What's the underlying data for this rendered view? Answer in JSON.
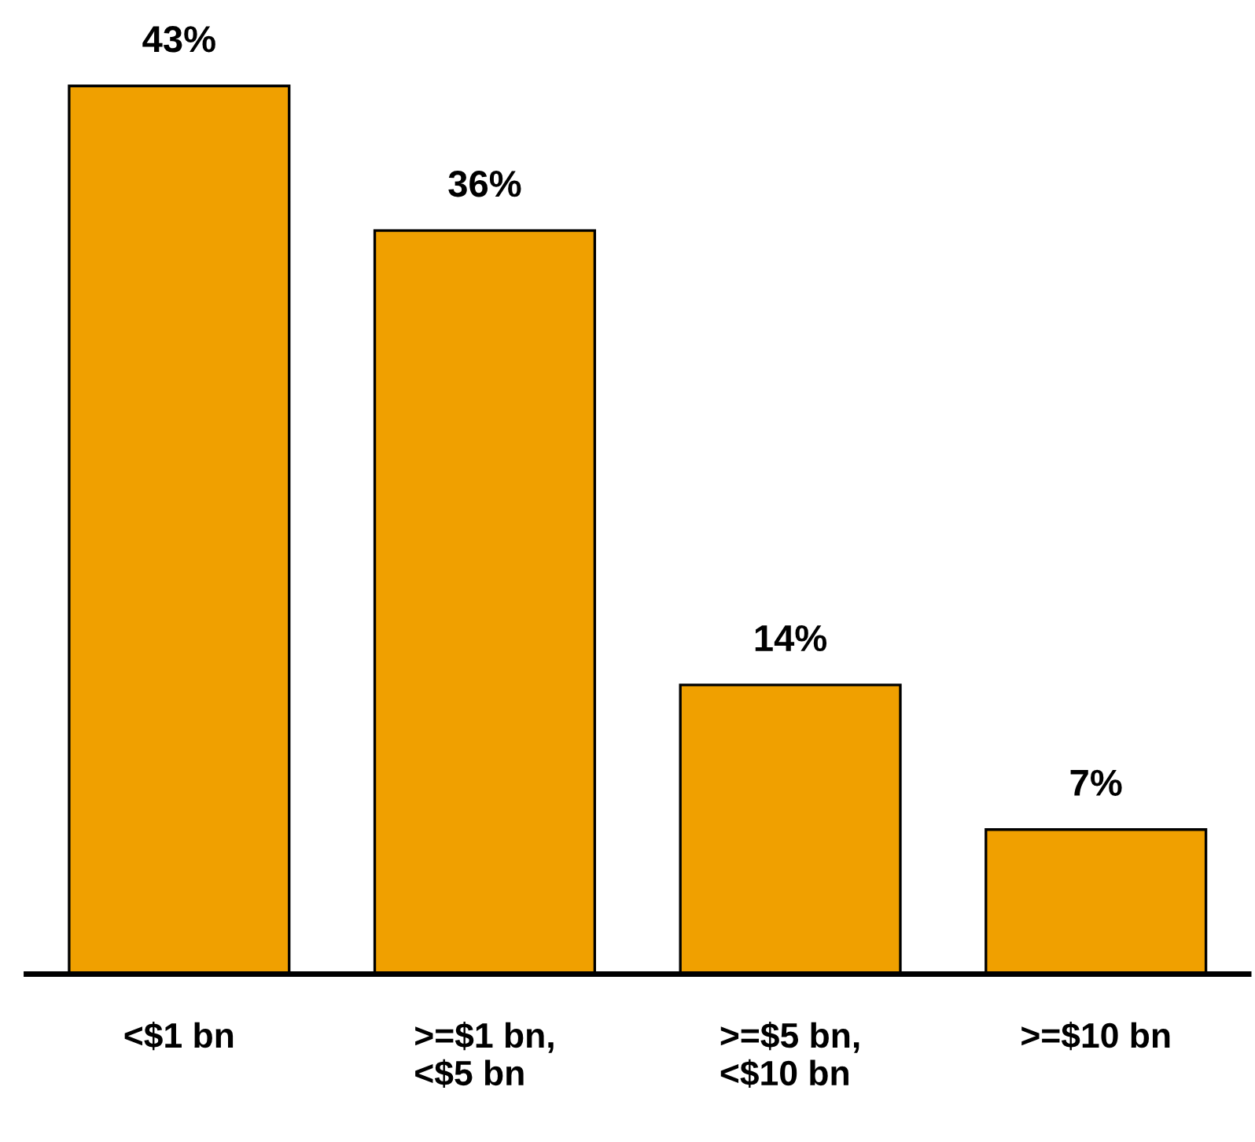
{
  "chart_data": {
    "type": "bar",
    "categories": [
      "<$1 bn",
      ">=$1 bn,\n<$5 bn",
      ">=$5 bn,\n<$10 bn",
      ">=$10 bn"
    ],
    "values": [
      43,
      36,
      14,
      7
    ],
    "value_labels": [
      "43%",
      "36%",
      "14%",
      "7%"
    ],
    "color": "#f0a000",
    "grid": false,
    "legend": false
  }
}
